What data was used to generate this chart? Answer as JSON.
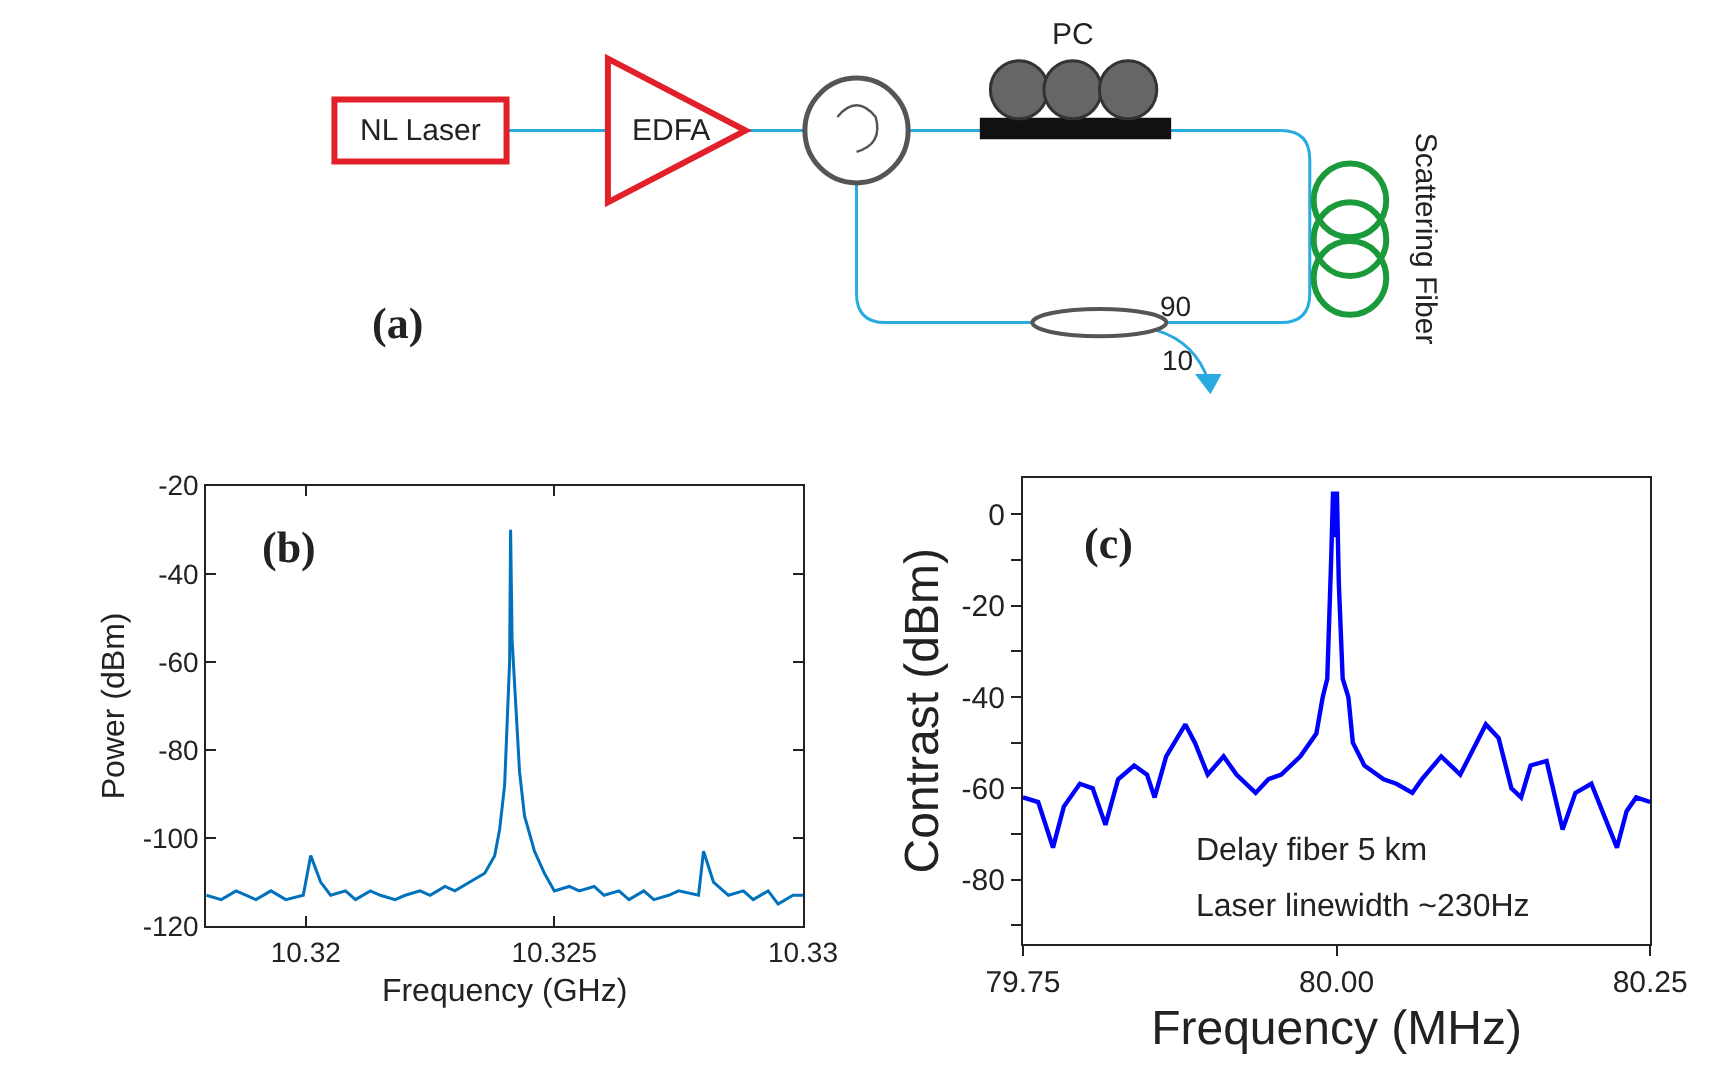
{
  "chart_data": [
    {
      "type": "other",
      "annotations": [
        "NL Laser",
        "EDFA",
        "PC",
        "Scattering Fiber",
        "90",
        "10",
        "(a)"
      ]
    },
    {
      "type": "line",
      "xlabel": "Frequency (GHz)",
      "ylabel": "Power (dBm)",
      "annotations": [
        "(b)"
      ],
      "x": [
        10.318,
        10.3183,
        10.3186,
        10.319,
        10.3193,
        10.3196,
        10.31995,
        10.3201,
        10.3203,
        10.3205,
        10.3208,
        10.321,
        10.3213,
        10.3215,
        10.3218,
        10.322,
        10.3223,
        10.3225,
        10.3228,
        10.323,
        10.3233,
        10.3236,
        10.3238,
        10.3239,
        10.324,
        10.3241,
        10.32412,
        10.32415,
        10.3243,
        10.3244,
        10.3246,
        10.3248,
        10.325,
        10.3253,
        10.3255,
        10.3258,
        10.326,
        10.3263,
        10.3265,
        10.3268,
        10.327,
        10.3273,
        10.3275,
        10.3279,
        10.328,
        10.3282,
        10.3285,
        10.3288,
        10.329,
        10.3293,
        10.3295,
        10.3298,
        10.33
      ],
      "series": [
        {
          "color": "#0072bd",
          "values": [
            -113,
            -114,
            -112,
            -114,
            -112,
            -114,
            -113,
            -104,
            -110,
            -113,
            -112,
            -114,
            -112,
            -113,
            -114,
            -113,
            -112,
            -113,
            -111,
            -112,
            -110,
            -108,
            -104,
            -98,
            -88,
            -60,
            -30,
            -55,
            -85,
            -95,
            -103,
            -108,
            -112,
            -111,
            -112,
            -111,
            -113,
            -112,
            -114,
            -112,
            -114,
            -113,
            -112,
            -113,
            -103,
            -110,
            -113,
            -112,
            -114,
            -112,
            -115,
            -113,
            -113
          ]
        }
      ],
      "xlim": [
        10.318,
        10.33
      ],
      "ylim": [
        -120,
        -20
      ],
      "xticks": [
        10.32,
        10.325,
        10.33
      ],
      "yticks": [
        -120,
        -100,
        -80,
        -60,
        -40,
        -20
      ]
    },
    {
      "type": "line",
      "xlabel": "Frequency (MHz)",
      "ylabel": "Contrast (dBm)",
      "annotations": [
        "(c)",
        "Delay fiber 5 km",
        "Laser linewidth ~230Hz"
      ],
      "x": [
        79.75,
        79.7622,
        79.774,
        79.7826,
        79.7954,
        79.8056,
        79.8158,
        79.8259,
        79.8387,
        79.8489,
        79.855,
        79.8642,
        79.8795,
        79.8871,
        79.8973,
        79.91,
        79.9202,
        79.9355,
        79.9457,
        79.9559,
        79.9712,
        79.9839,
        79.989,
        79.9926,
        79.9957,
        79.9972,
        79.9987,
        80.0003,
        80.0018,
        80.0049,
        80.0094,
        80.013,
        80.0222,
        80.0375,
        80.0477,
        80.0604,
        80.0681,
        80.0834,
        80.0986,
        80.119,
        80.1292,
        80.1394,
        80.1471,
        80.1547,
        80.1674,
        80.1802,
        80.1904,
        80.2031,
        80.2235,
        80.2312,
        80.2388,
        80.25
      ],
      "series": [
        {
          "color": "#0000ff",
          "values": [
            -62,
            -63,
            -73,
            -64,
            -59,
            -60,
            -68,
            -58,
            -55,
            -57,
            -62,
            -53,
            -46,
            -50,
            -57,
            -53,
            -57,
            -61,
            -58,
            -57,
            -53,
            -48,
            -40,
            -36,
            -10,
            5,
            -5,
            5,
            -15,
            -36,
            -40,
            -50,
            -55,
            -58,
            -59,
            -61,
            -58,
            -53,
            -57,
            -46,
            -49,
            -60,
            -62,
            -55,
            -54,
            -69,
            -61,
            -59,
            -73,
            -65,
            -62,
            -63
          ]
        }
      ],
      "xlim": [
        79.75,
        80.25
      ],
      "ylim": [
        -94,
        8
      ],
      "xticks": [
        {
          "value": 79.75,
          "label": "79.75"
        },
        {
          "value": 80,
          "label": "80.00"
        },
        {
          "value": 80.25,
          "label": "80.25"
        }
      ],
      "yticks": [
        {
          "value": -90,
          "label": null
        },
        -80,
        {
          "value": -70,
          "label": null
        },
        -60,
        {
          "value": -50,
          "label": null
        },
        -40,
        {
          "value": -30,
          "label": null
        },
        -20,
        {
          "value": -10,
          "label": null
        },
        0
      ]
    }
  ]
}
